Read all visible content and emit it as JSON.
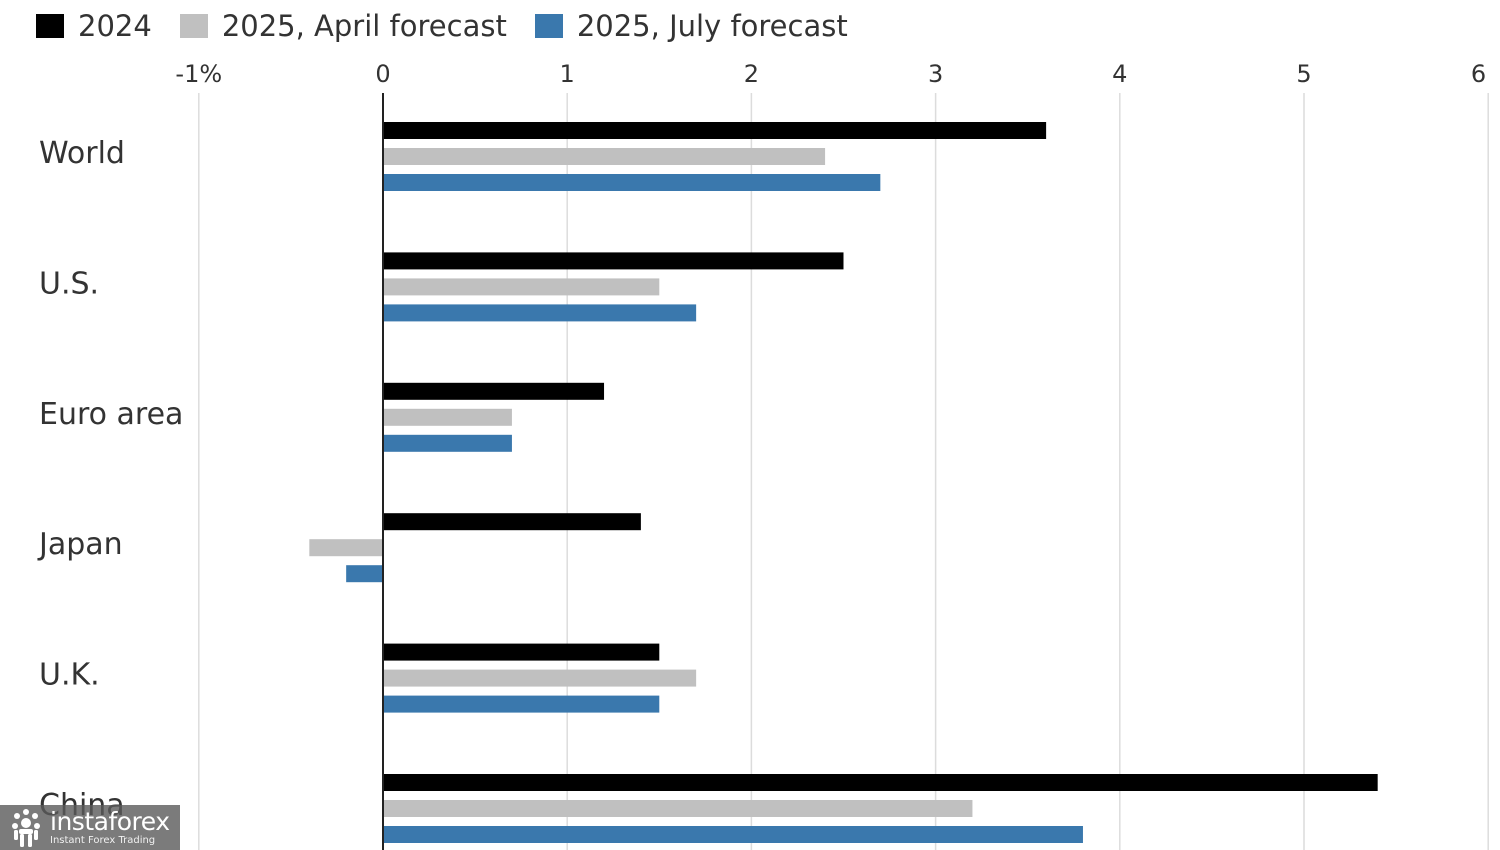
{
  "legend": {
    "items": [
      {
        "label": "2024",
        "color": "#000000"
      },
      {
        "label": "2025, April forecast",
        "color": "#c0c0c0"
      },
      {
        "label": "2025, July forecast",
        "color": "#3a78ad"
      }
    ]
  },
  "chart_data": {
    "type": "bar",
    "orientation": "horizontal",
    "title": "",
    "xlabel": "",
    "ylabel": "",
    "xlim": [
      -1,
      6
    ],
    "x_ticks": [
      {
        "value": -1,
        "label": "-1%"
      },
      {
        "value": 0,
        "label": "0"
      },
      {
        "value": 1,
        "label": "1"
      },
      {
        "value": 2,
        "label": "2"
      },
      {
        "value": 3,
        "label": "3"
      },
      {
        "value": 4,
        "label": "4"
      },
      {
        "value": 5,
        "label": "5"
      },
      {
        "value": 6,
        "label": "6"
      }
    ],
    "x_axis_position": "top",
    "grid": "vertical",
    "legend_position": "top-left",
    "categories": [
      "World",
      "U.S.",
      "Euro area",
      "Japan",
      "U.K.",
      "China"
    ],
    "series": [
      {
        "name": "2024",
        "color": "#000000",
        "values": [
          3.6,
          2.5,
          1.2,
          1.4,
          1.5,
          5.4
        ]
      },
      {
        "name": "2025, April forecast",
        "color": "#c0c0c0",
        "values": [
          2.4,
          1.5,
          0.7,
          -0.4,
          1.7,
          3.2
        ]
      },
      {
        "name": "2025, July forecast",
        "color": "#3a78ad",
        "values": [
          2.7,
          1.7,
          0.7,
          -0.2,
          1.5,
          3.8
        ]
      }
    ]
  },
  "watermark": {
    "brand": "instaforex",
    "tagline": "Instant Forex Trading",
    "icon": "instaforex-logo-icon"
  }
}
